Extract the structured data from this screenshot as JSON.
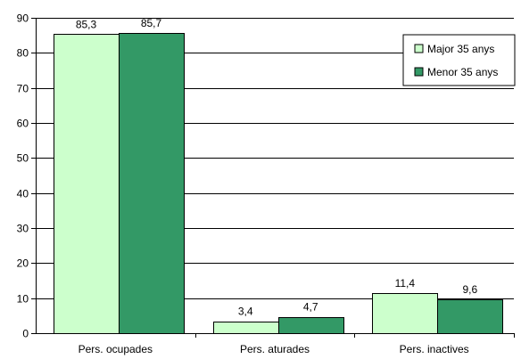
{
  "chart_data": {
    "type": "bar",
    "categories": [
      "Pers. ocupades",
      "Pers. aturades",
      "Pers. inactives"
    ],
    "series": [
      {
        "name": "Major 35 anys",
        "values": [
          85.3,
          3.4,
          11.4
        ],
        "labels": [
          "85,3",
          "3,4",
          "11,4"
        ],
        "color": "#ccffcc"
      },
      {
        "name": "Menor 35 anys",
        "values": [
          85.7,
          4.7,
          9.6
        ],
        "labels": [
          "85,7",
          "4,7",
          "9,6"
        ],
        "color": "#339966"
      }
    ],
    "yticks": [
      "0",
      "10",
      "20",
      "30",
      "40",
      "50",
      "60",
      "70",
      "80",
      "90"
    ],
    "ylim": [
      0,
      90
    ],
    "grid": true,
    "legend_position": "top-right",
    "title": "",
    "xlabel": "",
    "ylabel": ""
  }
}
